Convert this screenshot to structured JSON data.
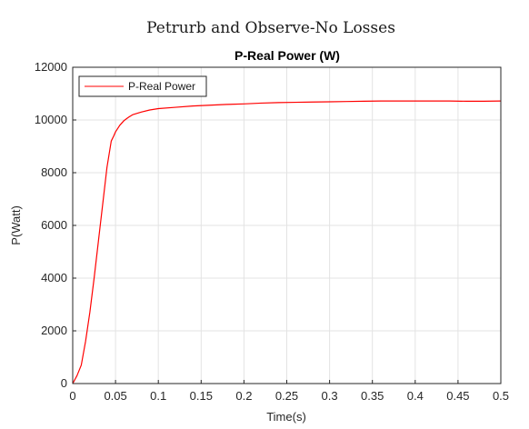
{
  "figure": {
    "suptitle": "Petrurb and Observe-No Losses"
  },
  "chart_data": {
    "type": "line",
    "title": "P-Real Power (W)",
    "xlabel": "Time(s)",
    "ylabel": "P(Watt)",
    "xlim": [
      0,
      0.5
    ],
    "ylim": [
      0,
      12000
    ],
    "xticks": [
      0,
      0.05,
      0.1,
      0.15,
      0.2,
      0.25,
      0.3,
      0.35,
      0.4,
      0.45,
      0.5
    ],
    "xtick_labels": [
      "0",
      "0.05",
      "0.1",
      "0.15",
      "0.2",
      "0.25",
      "0.3",
      "0.35",
      "0.4",
      "0.45",
      "0.5"
    ],
    "yticks": [
      0,
      2000,
      4000,
      6000,
      8000,
      10000,
      12000
    ],
    "ytick_labels": [
      "0",
      "2000",
      "4000",
      "6000",
      "8000",
      "10000",
      "12000"
    ],
    "grid": true,
    "legend_position": "top-left",
    "series": [
      {
        "name": "P-Real Power",
        "color": "#ff0000",
        "x": [
          0,
          0.005,
          0.01,
          0.015,
          0.02,
          0.025,
          0.03,
          0.035,
          0.04,
          0.045,
          0.048,
          0.05,
          0.055,
          0.06,
          0.065,
          0.07,
          0.08,
          0.09,
          0.1,
          0.12,
          0.14,
          0.16,
          0.18,
          0.2,
          0.22,
          0.24,
          0.26,
          0.28,
          0.3,
          0.32,
          0.34,
          0.36,
          0.38,
          0.4,
          0.42,
          0.44,
          0.46,
          0.48,
          0.5
        ],
        "y": [
          0,
          300,
          700,
          1600,
          2700,
          4000,
          5400,
          6800,
          8200,
          9200,
          9400,
          9550,
          9800,
          9980,
          10100,
          10200,
          10300,
          10380,
          10430,
          10480,
          10530,
          10560,
          10590,
          10610,
          10640,
          10660,
          10670,
          10680,
          10690,
          10700,
          10710,
          10720,
          10720,
          10720,
          10720,
          10720,
          10710,
          10710,
          10720
        ]
      }
    ]
  }
}
